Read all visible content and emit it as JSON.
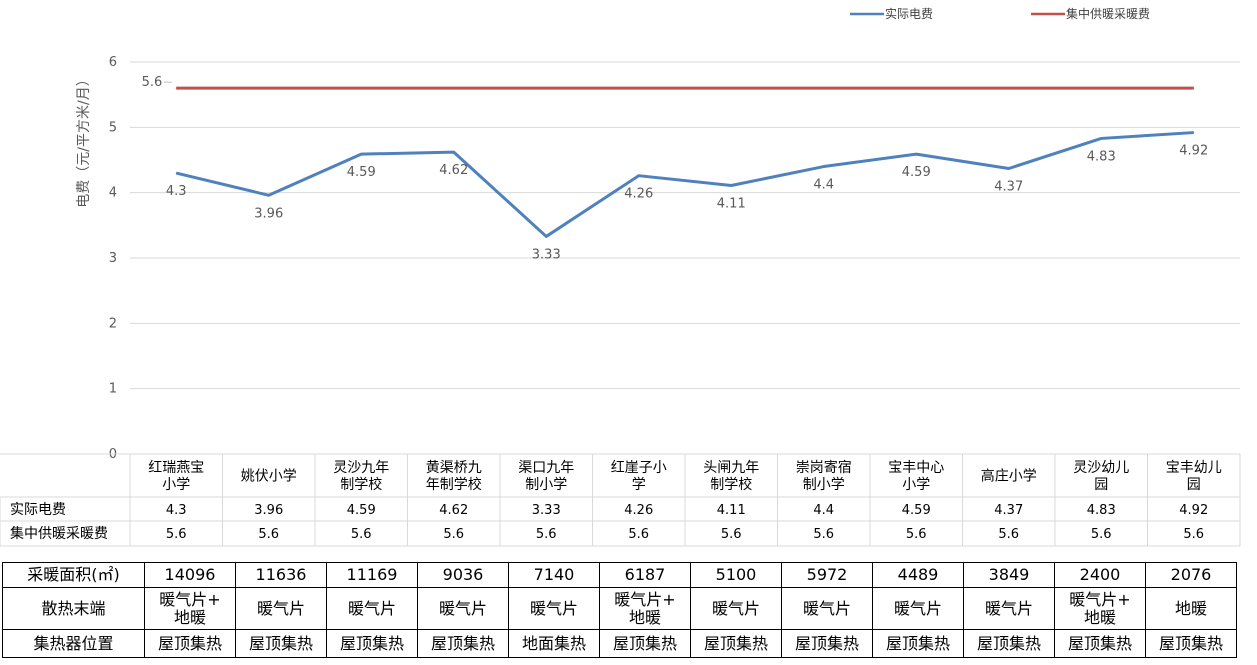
{
  "chart_data": {
    "type": "line",
    "title": "",
    "ylabel": "电费（元/平方米/月）",
    "xlabel": "",
    "ylim": [
      0,
      6
    ],
    "yticks": [
      0,
      1,
      2,
      3,
      4,
      5,
      6
    ],
    "grid": true,
    "legend_position": "top-right",
    "categories": [
      [
        "红瑞燕宝",
        "小学"
      ],
      [
        "姚伏小学"
      ],
      [
        "灵沙九年",
        "制学校"
      ],
      [
        "黄渠桥九",
        "年制学校"
      ],
      [
        "渠口九年",
        "制小学"
      ],
      [
        "红崖子小",
        "学"
      ],
      [
        "头闸九年",
        "制学校"
      ],
      [
        "崇岗寄宿",
        "制小学"
      ],
      [
        "宝丰中心",
        "小学"
      ],
      [
        "高庄小学"
      ],
      [
        "灵沙幼儿",
        "园"
      ],
      [
        "宝丰幼儿",
        "园"
      ]
    ],
    "series": [
      {
        "name": "实际电费",
        "color": "#4f81bd",
        "values": [
          4.3,
          3.96,
          4.59,
          4.62,
          3.33,
          4.26,
          4.11,
          4.4,
          4.59,
          4.37,
          4.83,
          4.92
        ],
        "labels": [
          "4.3",
          "3.96",
          "4.59",
          "4.62",
          "3.33",
          "4.26",
          "4.11",
          "4.4",
          "4.59",
          "4.37",
          "4.83",
          "4.92"
        ]
      },
      {
        "name": "集中供暖采暖费",
        "color": "#c0504d",
        "values": [
          5.6,
          5.6,
          5.6,
          5.6,
          5.6,
          5.6,
          5.6,
          5.6,
          5.6,
          5.6,
          5.6,
          5.6
        ],
        "labels": [
          "5.6",
          "5.6",
          "5.6",
          "5.6",
          "5.6",
          "5.6",
          "5.6",
          "5.6",
          "5.6",
          "5.6",
          "5.6",
          "5.6"
        ],
        "end_label": "5.6"
      }
    ]
  },
  "info_table": {
    "rows": [
      {
        "header": "采暖面积(㎡)",
        "cells": [
          "14096",
          "11636",
          "11169",
          "9036",
          "7140",
          "6187",
          "5100",
          "5972",
          "4489",
          "3849",
          "2400",
          "2076"
        ]
      },
      {
        "header": "散热末端",
        "cells": [
          [
            "暖气片+",
            "地暖"
          ],
          [
            "暖气片"
          ],
          [
            "暖气片"
          ],
          [
            "暖气片"
          ],
          [
            "暖气片"
          ],
          [
            "暖气片+",
            "地暖"
          ],
          [
            "暖气片"
          ],
          [
            "暖气片"
          ],
          [
            "暖气片"
          ],
          [
            "暖气片"
          ],
          [
            "暖气片+",
            "地暖"
          ],
          [
            "地暖"
          ]
        ]
      },
      {
        "header": "集热器位置",
        "cells": [
          "屋顶集热",
          "屋顶集热",
          "屋顶集热",
          "屋顶集热",
          "地面集热",
          "屋顶集热",
          "屋顶集热",
          "屋顶集热",
          "屋顶集热",
          "屋顶集热",
          "屋顶集热",
          "屋顶集热"
        ]
      }
    ]
  }
}
